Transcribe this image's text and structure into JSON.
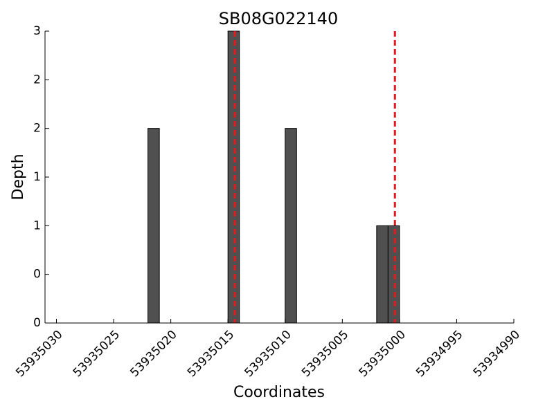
{
  "chart_data": {
    "type": "bar",
    "title": "SB08G022140",
    "xlabel": "Coordinates",
    "ylabel": "Depth",
    "x": [
      53935022,
      53935015,
      53935010,
      53935002,
      53935001
    ],
    "values": [
      2,
      3,
      2,
      1,
      1
    ],
    "color": "#505050",
    "xlim": [
      53935031,
      53934990
    ],
    "xticks": [
      53935030,
      53935025,
      53935020,
      53935015,
      53935010,
      53935005,
      53935000,
      53934995,
      53934990
    ],
    "ylim": [
      0,
      3
    ],
    "yticks": [
      0,
      {
        "value": 0.5,
        "label": "0"
      },
      1,
      {
        "value": 1.5,
        "label": "1"
      },
      2,
      {
        "value": 2.5,
        "label": "2"
      },
      3
    ],
    "vlines": {
      "color": "#e41a1c",
      "x": [
        53935014.4,
        53935000.4
      ]
    }
  }
}
